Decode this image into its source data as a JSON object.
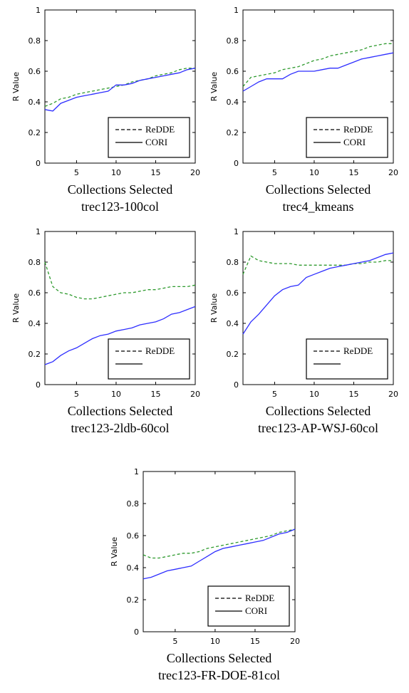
{
  "colors": {
    "cori": "#2e2eff",
    "redde": "#2e9a2e",
    "axis": "#000000",
    "legend_line": "#000000"
  },
  "chart_data": [
    {
      "type": "line",
      "xlabel": "Collections Selected",
      "ylabel": "R Value",
      "subtitle": "trec123-100col",
      "xlim": [
        1,
        20
      ],
      "ylim": [
        0,
        1
      ],
      "xticks": [
        5,
        10,
        15,
        20
      ],
      "yticks": [
        0,
        0.2,
        0.4,
        0.6,
        0.8,
        1
      ],
      "legend_position": "bottom-right",
      "legend": [
        "ReDDE",
        "CORI"
      ],
      "series": [
        {
          "name": "ReDDE",
          "style": "dashed",
          "x": [
            1,
            2,
            3,
            4,
            5,
            6,
            7,
            8,
            9,
            10,
            11,
            12,
            13,
            14,
            15,
            16,
            17,
            18,
            19,
            20
          ],
          "y": [
            0.37,
            0.39,
            0.42,
            0.43,
            0.45,
            0.46,
            0.47,
            0.48,
            0.49,
            0.5,
            0.51,
            0.53,
            0.54,
            0.55,
            0.57,
            0.58,
            0.59,
            0.61,
            0.62,
            0.62
          ]
        },
        {
          "name": "CORI",
          "style": "solid",
          "x": [
            1,
            2,
            3,
            4,
            5,
            6,
            7,
            8,
            9,
            10,
            11,
            12,
            13,
            14,
            15,
            16,
            17,
            18,
            19,
            20
          ],
          "y": [
            0.35,
            0.34,
            0.39,
            0.41,
            0.43,
            0.44,
            0.45,
            0.46,
            0.47,
            0.51,
            0.51,
            0.52,
            0.54,
            0.55,
            0.56,
            0.57,
            0.58,
            0.59,
            0.61,
            0.62
          ]
        }
      ]
    },
    {
      "type": "line",
      "xlabel": "Collections Selected",
      "ylabel": "R Value",
      "subtitle": "trec4_kmeans",
      "xlim": [
        1,
        20
      ],
      "ylim": [
        0,
        1
      ],
      "xticks": [
        5,
        10,
        15,
        20
      ],
      "yticks": [
        0,
        0.2,
        0.4,
        0.6,
        0.8,
        1
      ],
      "legend_position": "bottom-right",
      "legend": [
        "ReDDE",
        "CORI"
      ],
      "series": [
        {
          "name": "ReDDE",
          "style": "dashed",
          "x": [
            1,
            2,
            3,
            4,
            5,
            6,
            7,
            8,
            9,
            10,
            11,
            12,
            13,
            14,
            15,
            16,
            17,
            18,
            19,
            20
          ],
          "y": [
            0.5,
            0.56,
            0.57,
            0.58,
            0.59,
            0.61,
            0.62,
            0.63,
            0.65,
            0.67,
            0.68,
            0.7,
            0.71,
            0.72,
            0.73,
            0.74,
            0.76,
            0.77,
            0.78,
            0.78
          ]
        },
        {
          "name": "CORI",
          "style": "solid",
          "x": [
            1,
            2,
            3,
            4,
            5,
            6,
            7,
            8,
            9,
            10,
            11,
            12,
            13,
            14,
            15,
            16,
            17,
            18,
            19,
            20
          ],
          "y": [
            0.47,
            0.5,
            0.53,
            0.55,
            0.55,
            0.55,
            0.58,
            0.6,
            0.6,
            0.6,
            0.61,
            0.62,
            0.62,
            0.64,
            0.66,
            0.68,
            0.69,
            0.7,
            0.71,
            0.72
          ]
        }
      ]
    },
    {
      "type": "line",
      "xlabel": "Collections Selected",
      "ylabel": "R Value",
      "subtitle": "trec123-2ldb-60col",
      "xlim": [
        1,
        20
      ],
      "ylim": [
        0,
        1
      ],
      "xticks": [
        5,
        10,
        15,
        20
      ],
      "yticks": [
        0,
        0.2,
        0.4,
        0.6,
        0.8,
        1
      ],
      "legend_position": "bottom-right",
      "legend": [
        "ReDDE",
        ""
      ],
      "series": [
        {
          "name": "ReDDE",
          "style": "dashed",
          "x": [
            1,
            2,
            3,
            4,
            5,
            6,
            7,
            8,
            9,
            10,
            11,
            12,
            13,
            14,
            15,
            16,
            17,
            18,
            19,
            20
          ],
          "y": [
            0.8,
            0.64,
            0.6,
            0.59,
            0.57,
            0.56,
            0.56,
            0.57,
            0.58,
            0.59,
            0.6,
            0.6,
            0.61,
            0.62,
            0.62,
            0.63,
            0.64,
            0.64,
            0.64,
            0.65
          ]
        },
        {
          "style": "solid",
          "x": [
            1,
            2,
            3,
            4,
            5,
            6,
            7,
            8,
            9,
            10,
            11,
            12,
            13,
            14,
            15,
            16,
            17,
            18,
            19,
            20
          ],
          "y": [
            0.13,
            0.15,
            0.19,
            0.22,
            0.24,
            0.27,
            0.3,
            0.32,
            0.33,
            0.35,
            0.36,
            0.37,
            0.39,
            0.4,
            0.41,
            0.43,
            0.46,
            0.47,
            0.49,
            0.51
          ]
        }
      ]
    },
    {
      "type": "line",
      "xlabel": "Collections Selected",
      "ylabel": "R Value",
      "subtitle": "trec123-AP-WSJ-60col",
      "xlim": [
        1,
        20
      ],
      "ylim": [
        0,
        1
      ],
      "xticks": [
        5,
        10,
        15,
        20
      ],
      "yticks": [
        0,
        0.2,
        0.4,
        0.6,
        0.8,
        1
      ],
      "legend_position": "bottom-right",
      "legend": [
        "ReDDE",
        ""
      ],
      "series": [
        {
          "name": "ReDDE",
          "style": "dashed",
          "x": [
            1,
            2,
            3,
            4,
            5,
            6,
            7,
            8,
            9,
            10,
            11,
            12,
            13,
            14,
            15,
            16,
            17,
            18,
            19,
            20
          ],
          "y": [
            0.72,
            0.84,
            0.81,
            0.8,
            0.79,
            0.79,
            0.79,
            0.78,
            0.78,
            0.78,
            0.78,
            0.78,
            0.78,
            0.78,
            0.79,
            0.79,
            0.8,
            0.8,
            0.81,
            0.81
          ]
        },
        {
          "style": "solid",
          "x": [
            1,
            2,
            3,
            4,
            5,
            6,
            7,
            8,
            9,
            10,
            11,
            12,
            13,
            14,
            15,
            16,
            17,
            18,
            19,
            20
          ],
          "y": [
            0.33,
            0.41,
            0.46,
            0.52,
            0.58,
            0.62,
            0.64,
            0.65,
            0.7,
            0.72,
            0.74,
            0.76,
            0.77,
            0.78,
            0.79,
            0.8,
            0.81,
            0.83,
            0.85,
            0.86
          ]
        }
      ]
    },
    {
      "type": "line",
      "xlabel": "Collections Selected",
      "ylabel": "R Value",
      "subtitle": "trec123-FR-DOE-81col",
      "xlim": [
        1,
        20
      ],
      "ylim": [
        0,
        1
      ],
      "xticks": [
        5,
        10,
        15,
        20
      ],
      "yticks": [
        0,
        0.2,
        0.4,
        0.6,
        0.8,
        1
      ],
      "legend_position": "bottom-right",
      "legend": [
        "ReDDE",
        "CORI"
      ],
      "series": [
        {
          "name": "ReDDE",
          "style": "dashed",
          "x": [
            1,
            2,
            3,
            4,
            5,
            6,
            7,
            8,
            9,
            10,
            11,
            12,
            13,
            14,
            15,
            16,
            17,
            18,
            19,
            20
          ],
          "y": [
            0.48,
            0.46,
            0.46,
            0.47,
            0.48,
            0.49,
            0.49,
            0.5,
            0.52,
            0.53,
            0.54,
            0.55,
            0.56,
            0.57,
            0.58,
            0.59,
            0.6,
            0.62,
            0.63,
            0.64
          ]
        },
        {
          "name": "CORI",
          "style": "solid",
          "x": [
            1,
            2,
            3,
            4,
            5,
            6,
            7,
            8,
            9,
            10,
            11,
            12,
            13,
            14,
            15,
            16,
            17,
            18,
            19,
            20
          ],
          "y": [
            0.33,
            0.34,
            0.36,
            0.38,
            0.39,
            0.4,
            0.41,
            0.44,
            0.47,
            0.5,
            0.52,
            0.53,
            0.54,
            0.55,
            0.56,
            0.57,
            0.59,
            0.61,
            0.62,
            0.64
          ]
        }
      ]
    }
  ]
}
